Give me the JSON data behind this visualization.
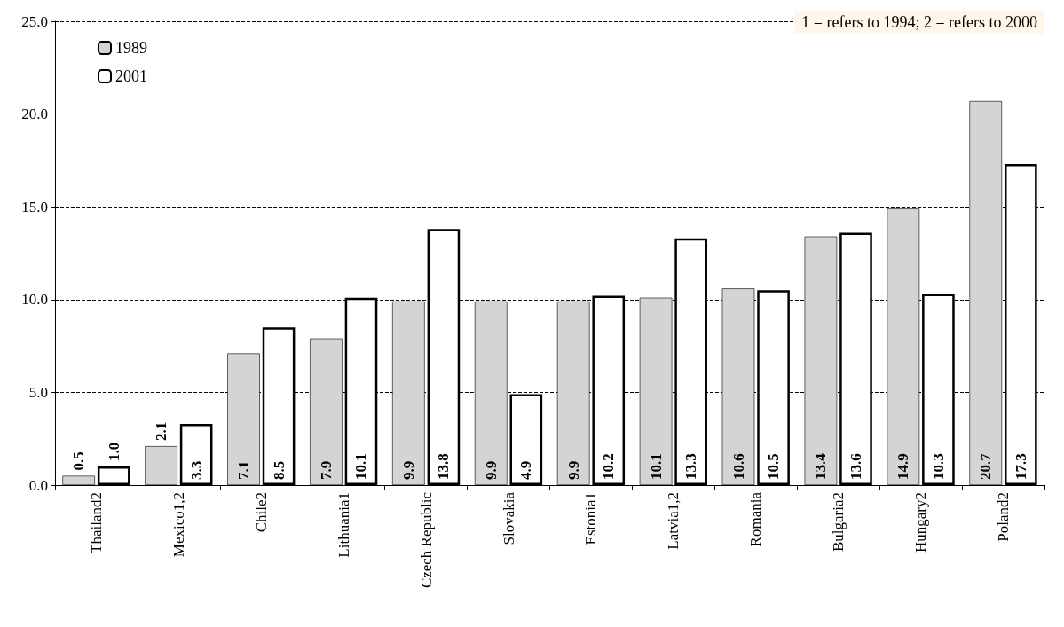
{
  "chart_data": {
    "type": "bar",
    "categories": [
      "Thailand2",
      "Mexico1,2",
      "Chile2",
      "Lithuania1",
      "Czech Republic",
      "Slovakia",
      "Estonia1",
      "Latvia1,2",
      "Romania",
      "Bulgaria2",
      "Hungary2",
      "Poland2"
    ],
    "series": [
      {
        "name": "1989",
        "color": "#d4d4d4",
        "values": [
          0.5,
          2.1,
          7.1,
          7.9,
          9.9,
          9.9,
          9.9,
          10.1,
          10.6,
          13.4,
          14.9,
          20.7
        ],
        "value_labels": [
          "0.5",
          "2.1",
          "7.1",
          "7.9",
          "9.9",
          "9.9",
          "9.9",
          "10.1",
          "10.6",
          "13.4",
          "14.9",
          "20.7"
        ]
      },
      {
        "name": "2001",
        "color": "#ffffff",
        "values": [
          1.0,
          3.3,
          8.5,
          10.1,
          13.8,
          4.9,
          10.2,
          13.3,
          10.5,
          13.6,
          10.3,
          17.3
        ],
        "value_labels": [
          "1.0",
          "3.3",
          "8.5",
          "10.1",
          "13.8",
          "4.9",
          "10.2",
          "13.3",
          "10.5",
          "13.6",
          "10.3",
          "17.3"
        ]
      }
    ],
    "ylim": [
      0,
      25
    ],
    "yticks": [
      {
        "value": 0,
        "label": "0.0"
      },
      {
        "value": 5,
        "label": "5.0"
      },
      {
        "value": 10,
        "label": "10.0"
      },
      {
        "value": 15,
        "label": "15.0"
      },
      {
        "value": 20,
        "label": "20.0"
      },
      {
        "value": 25,
        "label": "25.0"
      }
    ],
    "grid": "y",
    "legend": "top left",
    "annotations": [
      "1 = refers to 1994; 2 = refers to 2000"
    ]
  }
}
